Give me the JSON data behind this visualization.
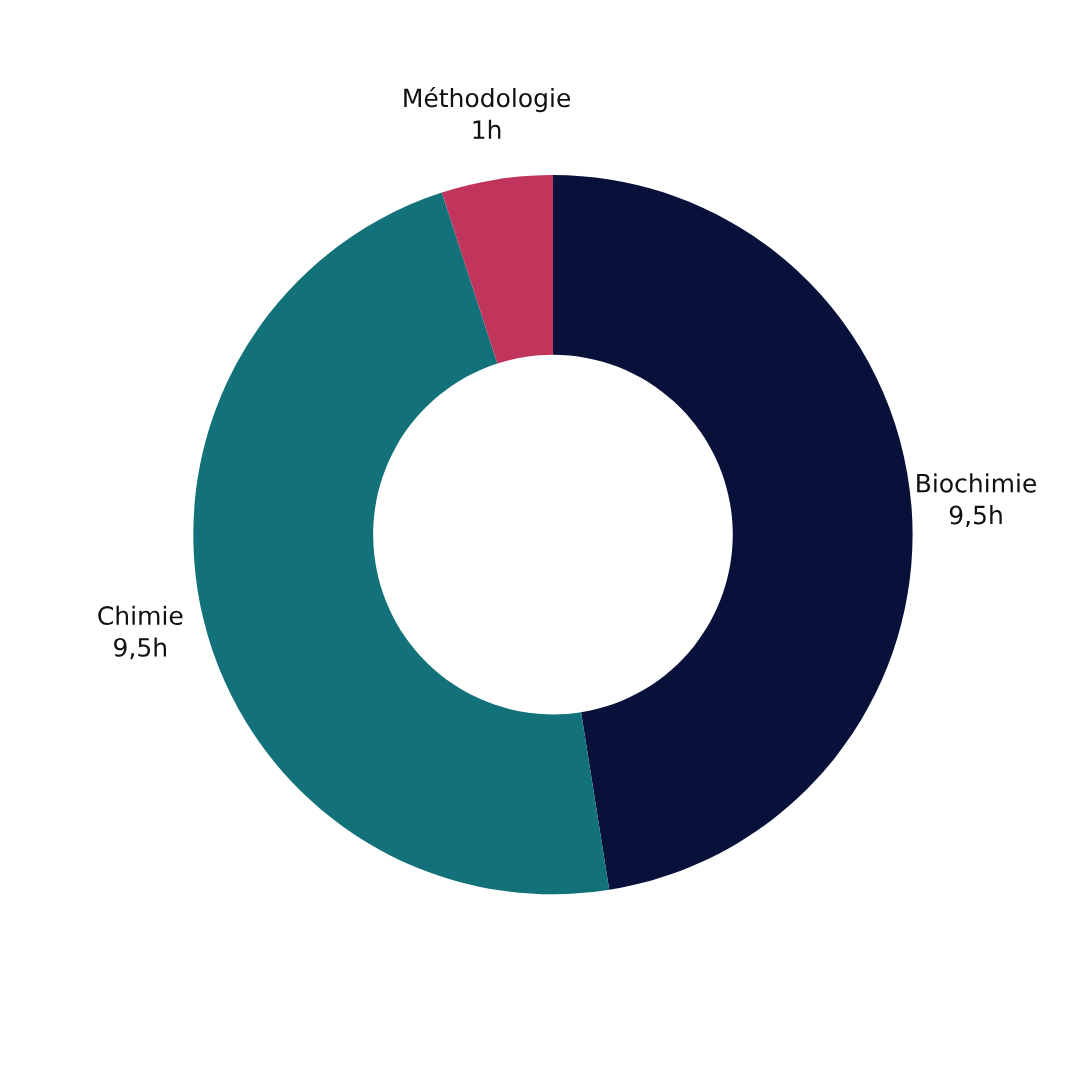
{
  "chart_data": {
    "type": "donut",
    "categories": [
      "Biochimie",
      "Chimie",
      "Méthodologie"
    ],
    "values": [
      9.5,
      9.5,
      1
    ],
    "value_labels": [
      "9,5h",
      "9,5h",
      "1h"
    ],
    "colors": [
      "#08113a",
      "#13717a",
      "#c1345c"
    ]
  }
}
